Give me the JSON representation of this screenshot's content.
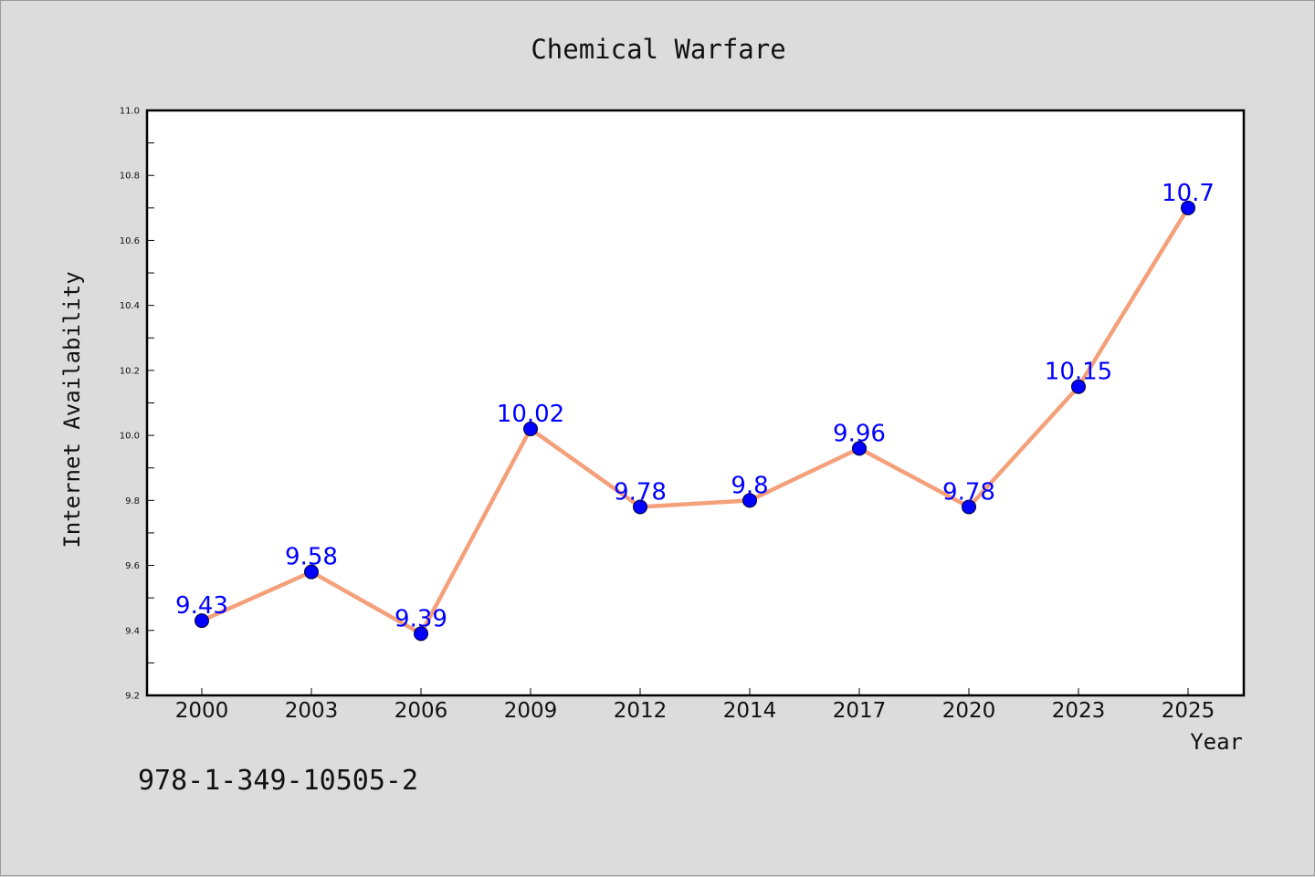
{
  "chart_data": {
    "type": "line",
    "title": "Chemical Warfare",
    "xlabel": "Year",
    "ylabel": "Internet Availability",
    "categories": [
      "2000",
      "2003",
      "2006",
      "2009",
      "2012",
      "2014",
      "2017",
      "2020",
      "2023",
      "2025"
    ],
    "values": [
      9.43,
      9.58,
      9.39,
      10.02,
      9.78,
      9.8,
      9.96,
      9.78,
      10.15,
      10.7
    ],
    "data_labels": [
      "9.43",
      "9.58",
      "9.39",
      "10.02",
      "9.78",
      "9.8",
      "9.96",
      "9.78",
      "10.15",
      "10.7"
    ],
    "ylim": [
      9.2,
      11.0
    ],
    "yticks": [
      "9.2",
      "9.4",
      "9.6",
      "9.8",
      "10.0",
      "10.2",
      "10.4",
      "10.6",
      "10.8",
      "11.0"
    ],
    "grid": false,
    "line_color": "#f4a07a",
    "marker_color": "#0000ff",
    "label_color": "#0000ff"
  },
  "footer": {
    "isbn": "978-1-349-10505-2"
  }
}
